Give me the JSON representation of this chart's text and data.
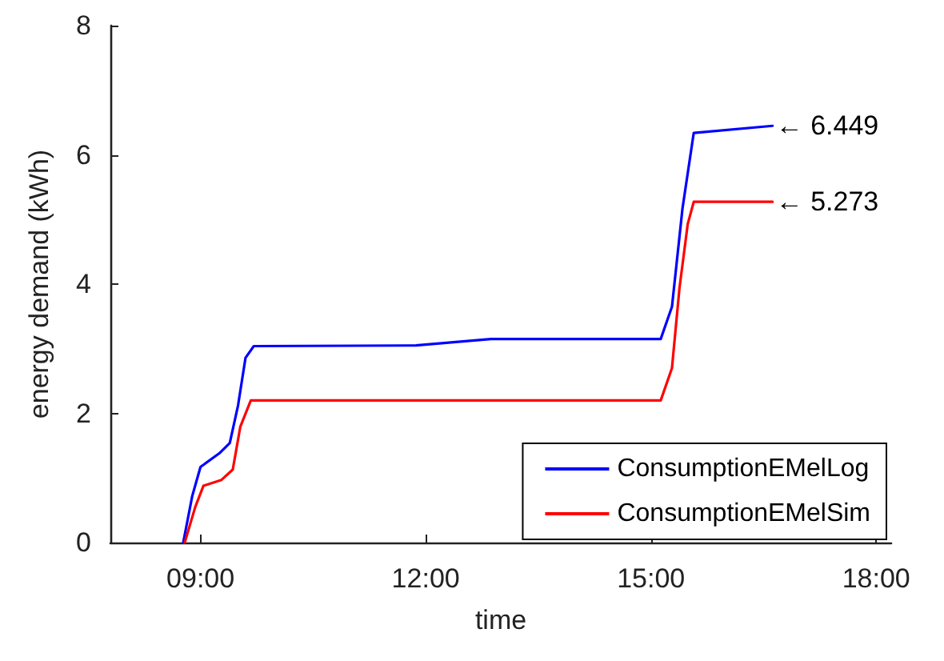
{
  "chart_data": {
    "type": "line",
    "xlabel": "time",
    "ylabel": "energy demand (kWh)",
    "xlim": [
      7.8,
      18.2
    ],
    "xticks": [
      {
        "value": 9,
        "label": "09:00"
      },
      {
        "value": 12,
        "label": "12:00"
      },
      {
        "value": 15,
        "label": "15:00"
      },
      {
        "value": 18,
        "label": "18:00"
      }
    ],
    "ylim": [
      0,
      8
    ],
    "yticks": [
      0,
      2,
      4,
      6,
      8
    ],
    "grid": false,
    "legend": "bottom right",
    "marker": "none",
    "line_style": "solid",
    "series": [
      {
        "name": "ConsumptionEMelLog",
        "color": "#0000ff",
        "x": [
          8.77,
          8.89,
          9.0,
          9.25,
          9.39,
          9.5,
          9.6,
          9.71,
          11.87,
          12.87,
          15.13,
          15.28,
          15.42,
          15.57,
          16.62
        ],
        "values": [
          0,
          0.72,
          1.17,
          1.38,
          1.54,
          2.12,
          2.86,
          3.04,
          3.05,
          3.15,
          3.15,
          3.65,
          5.17,
          6.34,
          6.449
        ]
      },
      {
        "name": "ConsumptionEMelSim",
        "color": "#ff0000",
        "x": [
          8.79,
          8.93,
          9.04,
          9.28,
          9.43,
          9.53,
          9.67,
          15.13,
          15.28,
          15.38,
          15.49,
          15.57,
          16.62
        ],
        "values": [
          0,
          0.55,
          0.88,
          0.97,
          1.13,
          1.79,
          2.2,
          2.2,
          2.7,
          3.94,
          4.93,
          5.273,
          5.273
        ]
      }
    ],
    "annotations": [
      {
        "text": "← 6.449",
        "x": 16.62,
        "y": 6.449
      },
      {
        "text": "← 5.273",
        "x": 16.62,
        "y": 5.273
      }
    ]
  }
}
